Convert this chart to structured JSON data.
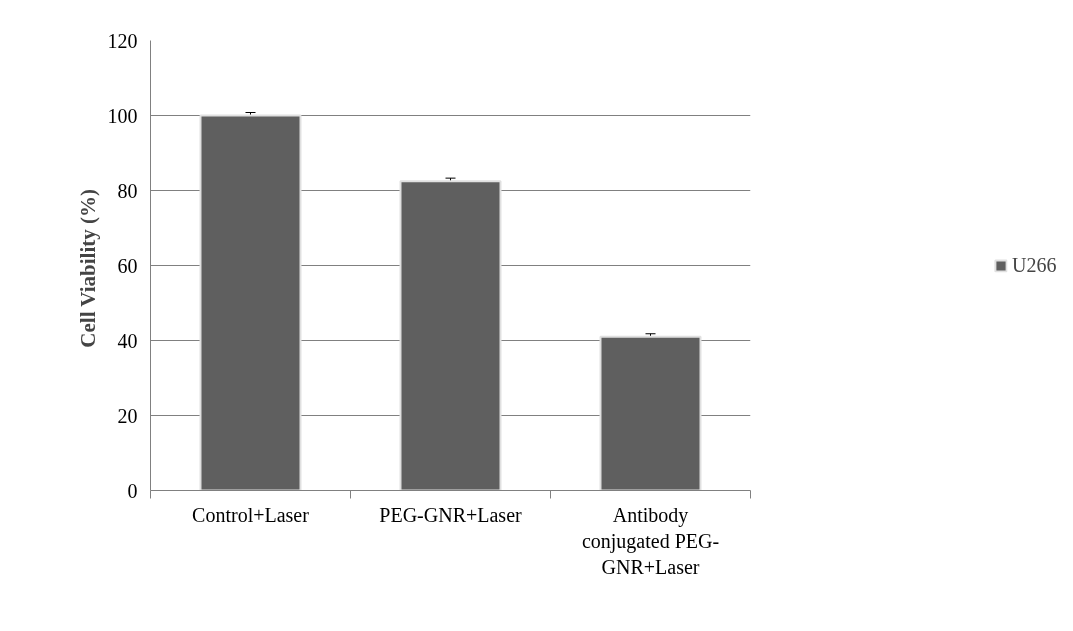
{
  "chart_data": {
    "type": "bar",
    "ylabel": "Cell Viability  (%)",
    "categories": [
      "Control+Laser",
      "PEG-GNR+Laser",
      "Antibody conjugated PEG-GNR+Laser"
    ],
    "series": [
      {
        "name": "U266",
        "color": "#5f5f5f",
        "values": [
          100,
          82.5,
          41
        ],
        "errors": [
          0.8,
          0.8,
          0.8
        ]
      }
    ],
    "ylim": [
      0,
      120
    ],
    "yticks": [
      0,
      20,
      40,
      60,
      80,
      100,
      120
    ],
    "grid": "y",
    "legend": "right"
  }
}
